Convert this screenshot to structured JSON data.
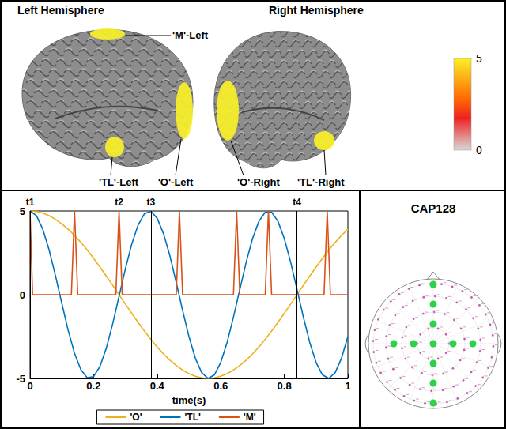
{
  "chart_data": {
    "type": "line",
    "x_label": "time(s)",
    "xlim": [
      0,
      1
    ],
    "xticks": [
      0,
      0.2,
      0.4,
      0.6,
      0.8,
      1
    ],
    "ylim": [
      -5,
      5
    ],
    "yticks": [
      -5,
      0,
      5
    ],
    "grid": false,
    "legend": "bottom",
    "series": [
      {
        "name": "'O'",
        "color": "#EDB120",
        "x": [
          0,
          0.02,
          0.04,
          0.06,
          0.08,
          0.1,
          0.12,
          0.14,
          0.16,
          0.18,
          0.2,
          0.22,
          0.24,
          0.26,
          0.28,
          0.3,
          0.32,
          0.34,
          0.36,
          0.38,
          0.4,
          0.42,
          0.44,
          0.46,
          0.48,
          0.5,
          0.52,
          0.54,
          0.56,
          0.58,
          0.6,
          0.62,
          0.64,
          0.66,
          0.68,
          0.7,
          0.72,
          0.74,
          0.76,
          0.78,
          0.8,
          0.82,
          0.84,
          0.86,
          0.88,
          0.9,
          0.92,
          0.94,
          0.96,
          0.98,
          1
        ],
        "values": [
          5,
          4.97,
          4.87,
          4.72,
          4.5,
          4.23,
          3.91,
          3.54,
          3.12,
          2.66,
          2.17,
          1.65,
          1.11,
          0.56,
          0,
          -0.56,
          -1.11,
          -1.65,
          -2.17,
          -2.66,
          -3.12,
          -3.54,
          -3.91,
          -4.23,
          -4.5,
          -4.72,
          -4.87,
          -4.97,
          -5,
          -4.97,
          -4.87,
          -4.72,
          -4.5,
          -4.23,
          -3.91,
          -3.54,
          -3.12,
          -2.66,
          -2.17,
          -1.65,
          -1.11,
          -0.56,
          0,
          0.56,
          1.11,
          1.65,
          2.17,
          2.66,
          3.12,
          3.54,
          3.91
        ]
      },
      {
        "name": "'TL'",
        "color": "#0072BD",
        "x": [
          0,
          0.02,
          0.04,
          0.06,
          0.08,
          0.1,
          0.12,
          0.14,
          0.16,
          0.18,
          0.2,
          0.22,
          0.24,
          0.26,
          0.28,
          0.3,
          0.32,
          0.34,
          0.36,
          0.38,
          0.4,
          0.42,
          0.44,
          0.46,
          0.48,
          0.5,
          0.52,
          0.54,
          0.56,
          0.58,
          0.6,
          0.62,
          0.64,
          0.66,
          0.68,
          0.7,
          0.72,
          0.74,
          0.76,
          0.78,
          0.8,
          0.82,
          0.84,
          0.86,
          0.88,
          0.9,
          0.92,
          0.94,
          0.96,
          0.98,
          1
        ],
        "values": [
          5,
          4.72,
          3.92,
          2.68,
          1.14,
          -0.52,
          -2.13,
          -3.5,
          -4.48,
          -4.96,
          -4.89,
          -4.28,
          -3.19,
          -1.74,
          -0.1,
          1.55,
          3.02,
          4.16,
          4.84,
          4.98,
          4.57,
          3.64,
          2.32,
          0.73,
          -0.94,
          -2.5,
          -3.79,
          -4.65,
          -5,
          -4.79,
          -4.05,
          -2.85,
          -1.34,
          0.31,
          1.94,
          3.35,
          4.38,
          4.93,
          4.93,
          4.38,
          3.35,
          1.94,
          0.31,
          -1.34,
          -2.85,
          -4.05,
          -4.79,
          -5,
          -4.65,
          -3.79,
          -2.5
        ]
      },
      {
        "name": "'M'",
        "color": "#D95319",
        "x": [
          0,
          0.008,
          0.13,
          0.14,
          0.15,
          0.27,
          0.28,
          0.29,
          0.46,
          0.47,
          0.48,
          0.64,
          0.65,
          0.66,
          0.74,
          0.75,
          0.76,
          0.925,
          0.935,
          0.945,
          1
        ],
        "values": [
          5,
          0,
          0,
          5,
          0,
          0,
          5,
          0,
          0,
          5,
          0,
          0,
          5,
          0,
          0,
          5,
          0,
          0,
          5,
          0,
          0
        ]
      }
    ],
    "annotations": [
      {
        "label": "t1",
        "x": 0
      },
      {
        "label": "t2",
        "x": 0.28
      },
      {
        "label": "t3",
        "x": 0.375
      },
      {
        "label": "t4",
        "x": 0.84
      }
    ]
  },
  "brain_panel": {
    "hemispheres": [
      "Left Hemisphere",
      "Right Hemisphere"
    ],
    "regions": [
      {
        "label": "'M'-Left",
        "value": 5
      },
      {
        "label": "'TL'-Left",
        "value": 5
      },
      {
        "label": "'O'-Left",
        "value": 5
      },
      {
        "label": "'O'-Right",
        "value": 5
      },
      {
        "label": "'TL'-Right",
        "value": 5
      }
    ],
    "colorbar": {
      "range": [
        0,
        5
      ],
      "ticks": [
        5,
        0
      ]
    }
  },
  "cap_panel": {
    "title": "CAP128"
  }
}
